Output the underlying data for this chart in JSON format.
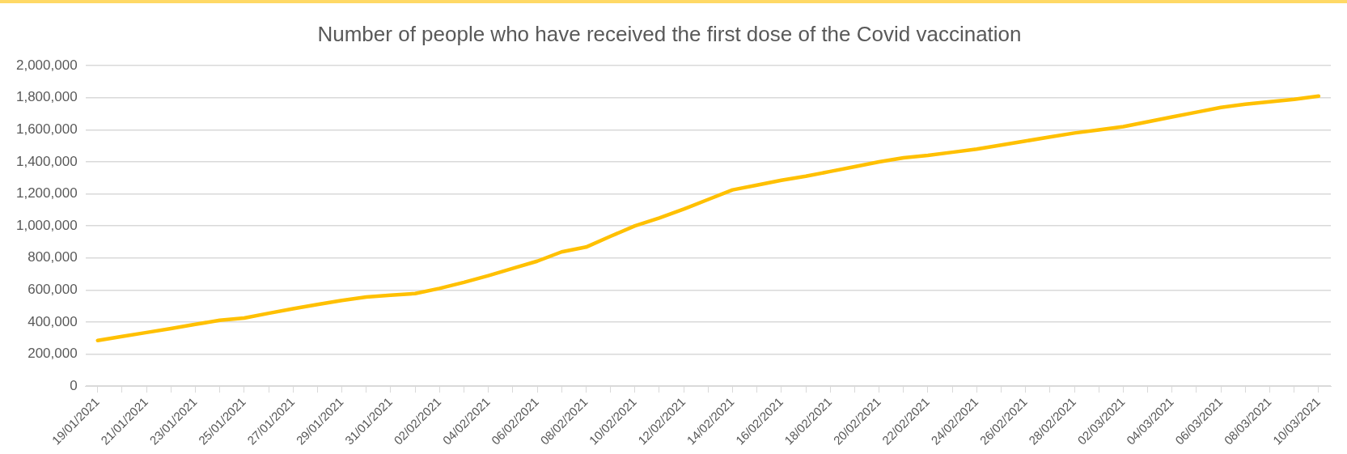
{
  "chart_data": {
    "type": "line",
    "title": "Number of people who have received the first dose of the Covid vaccination",
    "categories": [
      "19/01/2021",
      null,
      "21/01/2021",
      null,
      "23/01/2021",
      null,
      "25/01/2021",
      null,
      "27/01/2021",
      null,
      "29/01/2021",
      null,
      "31/01/2021",
      null,
      "02/02/2021",
      null,
      "04/02/2021",
      null,
      "06/02/2021",
      null,
      "08/02/2021",
      null,
      "10/02/2021",
      null,
      "12/02/2021",
      null,
      "14/02/2021",
      null,
      "16/02/2021",
      null,
      "18/02/2021",
      null,
      "20/02/2021",
      null,
      "22/02/2021",
      null,
      "24/02/2021",
      null,
      "26/02/2021",
      null,
      "28/02/2021",
      null,
      "02/03/2021",
      null,
      "04/03/2021",
      null,
      "06/03/2021",
      null,
      "08/03/2021",
      null,
      "10/03/2021"
    ],
    "series": [
      {
        "color": "#ffc000",
        "values": [
          285000,
          310000,
          335000,
          360000,
          386000,
          411000,
          425000,
          455000,
          483000,
          510000,
          535000,
          556000,
          568000,
          578000,
          610000,
          648000,
          690000,
          735000,
          780000,
          838000,
          868000,
          935000,
          1000000,
          1050000,
          1105000,
          1165000,
          1225000,
          1255000,
          1285000,
          1310000,
          1340000,
          1370000,
          1400000,
          1425000,
          1440000,
          1460000,
          1480000,
          1505000,
          1530000,
          1555000,
          1580000,
          1600000,
          1620000,
          1650000,
          1680000,
          1710000,
          1740000,
          1760000,
          1775000,
          1790000,
          1810000
        ]
      }
    ],
    "ylim": [
      0,
      2000000
    ],
    "yticks": [
      0,
      {
        "value": 200000,
        "label": "200,000"
      },
      {
        "value": 400000,
        "label": "400,000"
      },
      {
        "value": 600000,
        "label": "600,000"
      },
      {
        "value": 800000,
        "label": "800,000"
      },
      {
        "value": 1000000,
        "label": "1,000,000"
      },
      {
        "value": 1200000,
        "label": "1,200,000"
      },
      {
        "value": 1400000,
        "label": "1,400,000"
      },
      {
        "value": 1600000,
        "label": "1,600,000"
      },
      {
        "value": 1800000,
        "label": "1,800,000"
      },
      {
        "value": 2000000,
        "label": "2,000,000"
      }
    ],
    "grid": "y",
    "legend": false,
    "marker": "none",
    "line_style": "solid"
  }
}
